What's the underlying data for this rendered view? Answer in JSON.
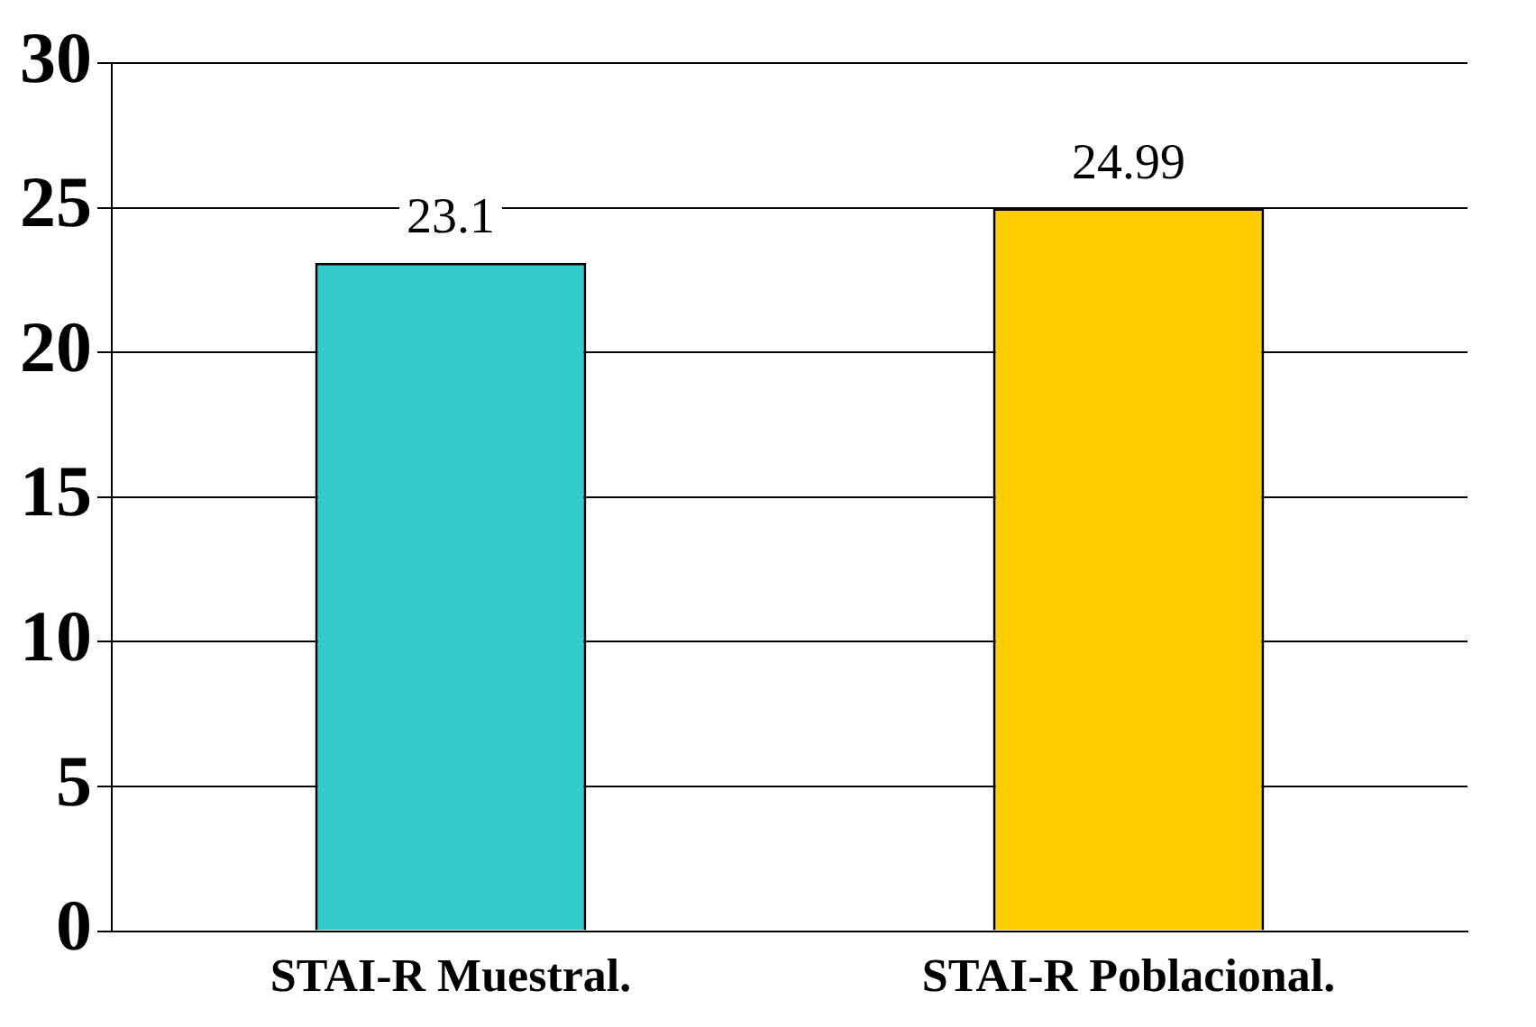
{
  "chart_data": {
    "type": "bar",
    "categories": [
      "STAI-R Muestral.",
      "STAI-R Poblacional."
    ],
    "values": [
      23.1,
      24.99
    ],
    "colors": [
      "#33cccc",
      "#ffcc00"
    ],
    "ylim": [
      0,
      30
    ],
    "yticks": [
      0,
      5,
      10,
      15,
      20,
      25,
      30
    ],
    "grid": "y",
    "data_labels": true,
    "legend": false
  }
}
